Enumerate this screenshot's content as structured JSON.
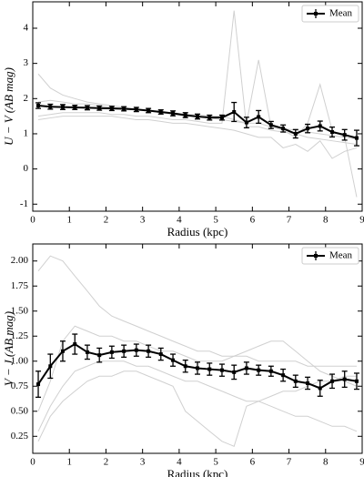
{
  "chart_data": [
    {
      "type": "errorbar",
      "x_label": "Radius (kpc)",
      "y_label": "U − V (AB mag)",
      "xlim": [
        0,
        9
      ],
      "xticks": [
        0,
        1,
        2,
        3,
        4,
        5,
        6,
        7,
        8,
        9
      ],
      "ylim": [
        -1.2,
        4.75
      ],
      "yticks": [
        -1,
        0,
        1,
        2,
        3,
        4
      ],
      "legend_position": "upper right",
      "individual_color": "#d0d0d0",
      "x": [
        0.15,
        0.48,
        0.82,
        1.15,
        1.49,
        1.82,
        2.16,
        2.49,
        2.83,
        3.16,
        3.5,
        3.83,
        4.17,
        4.5,
        4.83,
        5.17,
        5.5,
        5.84,
        6.17,
        6.51,
        6.84,
        7.18,
        7.51,
        7.85,
        8.18,
        8.52,
        8.85
      ],
      "series": [
        {
          "name": "Mean",
          "color": "#000000",
          "values": [
            1.8,
            1.77,
            1.76,
            1.75,
            1.74,
            1.73,
            1.72,
            1.71,
            1.69,
            1.66,
            1.62,
            1.58,
            1.53,
            1.49,
            1.46,
            1.46,
            1.62,
            1.32,
            1.48,
            1.25,
            1.15,
            1.0,
            1.15,
            1.22,
            1.05,
            0.97,
            0.88
          ],
          "errors": [
            0.08,
            0.07,
            0.07,
            0.06,
            0.06,
            0.06,
            0.06,
            0.06,
            0.06,
            0.06,
            0.06,
            0.07,
            0.07,
            0.07,
            0.07,
            0.07,
            0.27,
            0.15,
            0.18,
            0.1,
            0.1,
            0.12,
            0.12,
            0.14,
            0.14,
            0.15,
            0.22
          ]
        }
      ],
      "individual": [
        [
          2.7,
          2.3,
          2.1,
          2.0,
          1.9,
          1.85,
          1.8,
          1.75,
          1.7,
          1.65,
          1.6,
          1.55,
          1.5,
          1.5,
          1.45,
          1.4,
          1.35,
          1.3,
          1.3,
          1.2,
          1.15,
          1.1,
          1.05,
          1.0,
          0.95,
          0.9,
          0.85
        ],
        [
          1.5,
          1.55,
          1.6,
          1.6,
          1.6,
          1.6,
          1.55,
          1.55,
          1.5,
          1.5,
          1.45,
          1.4,
          1.4,
          1.35,
          1.3,
          1.3,
          4.5,
          1.2,
          1.2,
          1.1,
          1.05,
          1.0,
          0.9,
          0.85,
          0.8,
          0.75,
          0.7
        ],
        [
          1.9,
          1.95,
          1.9,
          1.85,
          1.85,
          1.8,
          1.75,
          1.7,
          1.7,
          1.65,
          1.6,
          1.6,
          1.55,
          1.55,
          1.5,
          1.5,
          1.4,
          1.3,
          3.1,
          1.2,
          1.1,
          0.9,
          1.3,
          2.4,
          1.1,
          0.9,
          -0.8
        ],
        [
          1.4,
          1.45,
          1.5,
          1.5,
          1.5,
          1.5,
          1.5,
          1.45,
          1.4,
          1.4,
          1.35,
          1.3,
          1.3,
          1.25,
          1.2,
          1.15,
          1.1,
          1.0,
          0.9,
          0.9,
          0.6,
          0.7,
          0.5,
          0.8,
          0.3,
          0.5,
          0.6
        ]
      ]
    },
    {
      "type": "errorbar",
      "x_label": "Radius (kpc)",
      "y_label": "V − J (AB mag)",
      "xlim": [
        0,
        9
      ],
      "xticks": [
        0,
        1,
        2,
        3,
        4,
        5,
        6,
        7,
        8,
        9
      ],
      "ylim": [
        0.08,
        2.17
      ],
      "yticks": [
        {
          "value": 0.25,
          "label": "0.25"
        },
        {
          "value": 0.5,
          "label": "0.50"
        },
        {
          "value": 0.75,
          "label": "0.75"
        },
        {
          "value": 1,
          "label": "1.00"
        },
        {
          "value": 1.25,
          "label": "1.25"
        },
        {
          "value": 1.5,
          "label": "1.50"
        },
        {
          "value": 1.75,
          "label": "1.75"
        },
        {
          "value": 2,
          "label": "2.00"
        }
      ],
      "legend_position": "upper right",
      "individual_color": "#d0d0d0",
      "x": [
        0.15,
        0.48,
        0.82,
        1.15,
        1.49,
        1.82,
        2.16,
        2.49,
        2.83,
        3.16,
        3.5,
        3.83,
        4.17,
        4.5,
        4.83,
        5.17,
        5.5,
        5.84,
        6.17,
        6.51,
        6.84,
        7.18,
        7.51,
        7.85,
        8.18,
        8.52,
        8.85
      ],
      "series": [
        {
          "name": "Mean",
          "color": "#000000",
          "values": [
            0.77,
            0.95,
            1.1,
            1.17,
            1.09,
            1.06,
            1.09,
            1.1,
            1.11,
            1.1,
            1.07,
            1.01,
            0.95,
            0.93,
            0.92,
            0.91,
            0.89,
            0.93,
            0.91,
            0.9,
            0.86,
            0.8,
            0.78,
            0.73,
            0.8,
            0.82,
            0.8
          ],
          "errors": [
            0.13,
            0.12,
            0.1,
            0.1,
            0.07,
            0.07,
            0.06,
            0.06,
            0.06,
            0.06,
            0.06,
            0.06,
            0.06,
            0.06,
            0.06,
            0.06,
            0.07,
            0.06,
            0.05,
            0.05,
            0.06,
            0.06,
            0.06,
            0.08,
            0.07,
            0.08,
            0.08
          ]
        }
      ],
      "individual": [
        [
          1.9,
          2.05,
          2.0,
          1.85,
          1.7,
          1.55,
          1.45,
          1.4,
          1.35,
          1.3,
          1.25,
          1.2,
          1.15,
          1.1,
          1.1,
          1.05,
          1.05,
          1.05,
          1.0,
          1.0,
          1.0,
          1.0,
          0.95,
          0.95,
          0.95,
          0.95,
          0.95
        ],
        [
          0.3,
          0.55,
          0.75,
          0.9,
          0.95,
          1.0,
          1.0,
          1.0,
          0.95,
          0.95,
          0.9,
          0.85,
          0.8,
          0.8,
          0.75,
          0.7,
          0.65,
          0.6,
          0.6,
          0.55,
          0.5,
          0.45,
          0.45,
          0.4,
          0.35,
          0.35,
          0.3
        ],
        [
          0.5,
          0.8,
          1.2,
          1.35,
          1.3,
          1.25,
          1.25,
          1.2,
          1.2,
          1.15,
          1.1,
          1.1,
          1.05,
          1.0,
          1.0,
          1.0,
          1.05,
          1.1,
          1.15,
          1.2,
          1.2,
          1.1,
          1.0,
          0.9,
          0.85,
          0.8,
          0.75
        ],
        [
          0.2,
          0.45,
          0.6,
          0.7,
          0.8,
          0.85,
          0.85,
          0.9,
          0.9,
          0.85,
          0.8,
          0.75,
          0.5,
          0.4,
          0.3,
          0.2,
          0.15,
          0.55,
          0.6,
          0.65,
          0.7,
          0.7,
          0.75,
          0.8,
          0.8,
          0.85,
          0.85
        ]
      ]
    }
  ]
}
